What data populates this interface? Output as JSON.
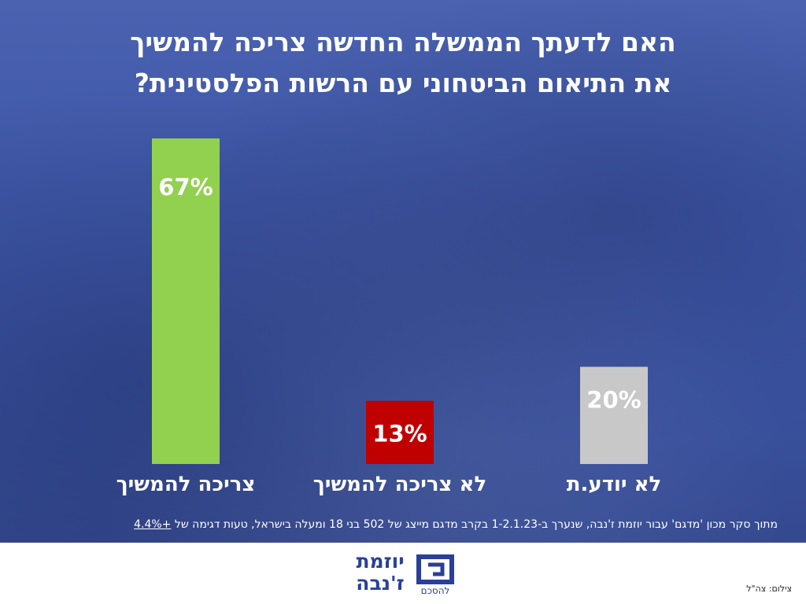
{
  "chart_data": {
    "type": "bar",
    "title_lines": [
      "האם לדעתך הממשלה החדשה צריכה להמשיך",
      "את התיאום הביטחוני עם הרשות הפלסטינית?"
    ],
    "categories": [
      "צריכה להמשיך",
      "לא צריכה להמשיך",
      "לא יודע.ת"
    ],
    "values": [
      67,
      13,
      20
    ],
    "value_labels": [
      "67%",
      "13%",
      "20%"
    ],
    "colors": [
      "#92d050",
      "#c00000",
      "#c8c8c8"
    ],
    "ylim": [
      0,
      67
    ],
    "grid": false,
    "legend": "none"
  },
  "footnote": {
    "text": "מתוך סקר מכון 'מדגם' עבור יוזמת ז'נבה, שנערך ב-1-2.1.23 בקרב מדגם מייצג של 502 בני 18 ומעלה בישראל, טעות דגימה של",
    "margin_of_error": "4.4%+"
  },
  "logo": {
    "name_line1": "יוזמת",
    "name_line2": "ז'נבה",
    "tagline": "להסכם"
  },
  "credit": "צילום: צה\"ל",
  "colors": {
    "background": "#3f58a8",
    "brand": "#2a3f9a"
  }
}
